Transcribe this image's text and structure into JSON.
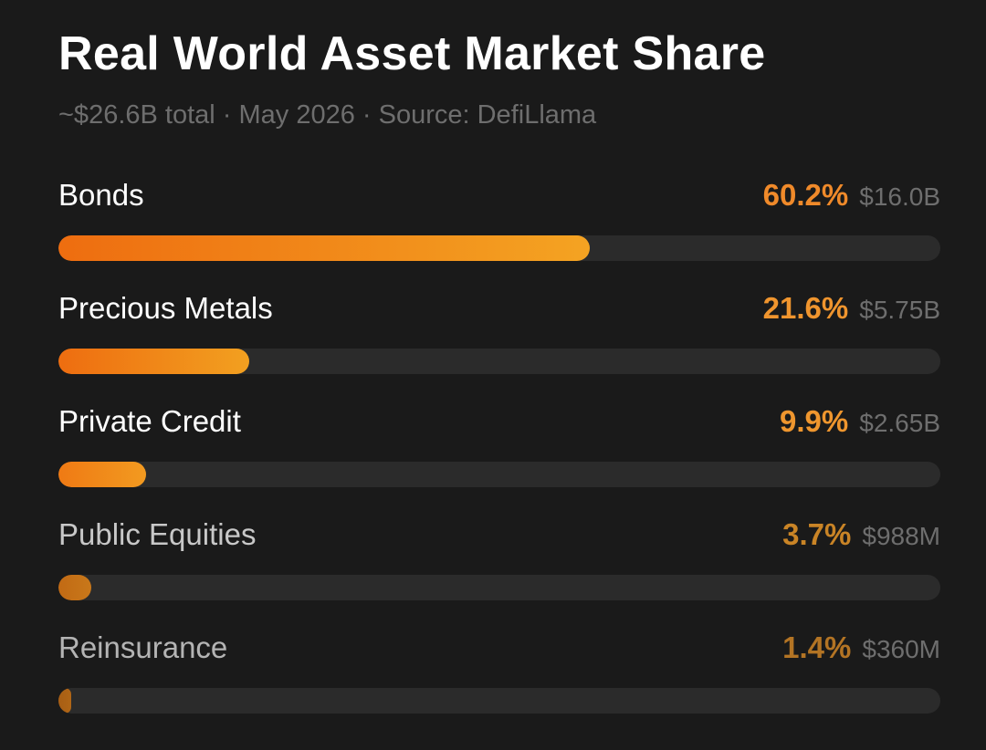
{
  "title": "Real World Asset Market Share",
  "subtitle": "~$26.6B total · May 2026 · Source: DefiLlama",
  "chart_data": {
    "type": "bar",
    "orientation": "horizontal",
    "title": "Real World Asset Market Share",
    "subtitle": "~$26.6B total · May 2026 · Source: DefiLlama",
    "unit": "%",
    "xlim": [
      0,
      100
    ],
    "grid": false,
    "categories": [
      "Bonds",
      "Precious Metals",
      "Private Credit",
      "Public Equities",
      "Reinsurance"
    ],
    "values": [
      60.2,
      21.6,
      9.9,
      3.7,
      1.4
    ],
    "rows": [
      {
        "label": "Bonds",
        "pct_label": "60.2%",
        "value": 60.2,
        "amount": "$16.0B",
        "label_color": "#ffffff",
        "pct_color": "#f08a2a",
        "grad_from": "#ee6d10",
        "grad_to": "#f4a322"
      },
      {
        "label": "Precious Metals",
        "pct_label": "21.6%",
        "value": 21.6,
        "amount": "$5.75B",
        "label_color": "#ffffff",
        "pct_color": "#f0952e",
        "grad_from": "#ee6d10",
        "grad_to": "#f2a020"
      },
      {
        "label": "Private Credit",
        "pct_label": "9.9%",
        "value": 9.9,
        "amount": "$2.65B",
        "label_color": "#ffffff",
        "pct_color": "#ef962e",
        "grad_from": "#ef7a14",
        "grad_to": "#f29a20"
      },
      {
        "label": "Public Equities",
        "pct_label": "3.7%",
        "value": 3.7,
        "amount": "$988M",
        "label_color": "#c8c8c8",
        "pct_color": "#c98426",
        "grad_from": "#c26a14",
        "grad_to": "#c8781a"
      },
      {
        "label": "Reinsurance",
        "pct_label": "1.4%",
        "value": 1.4,
        "amount": "$360M",
        "label_color": "#b4b4b4",
        "pct_color": "#b37424",
        "grad_from": "#a85e14",
        "grad_to": "#b06616"
      }
    ]
  }
}
